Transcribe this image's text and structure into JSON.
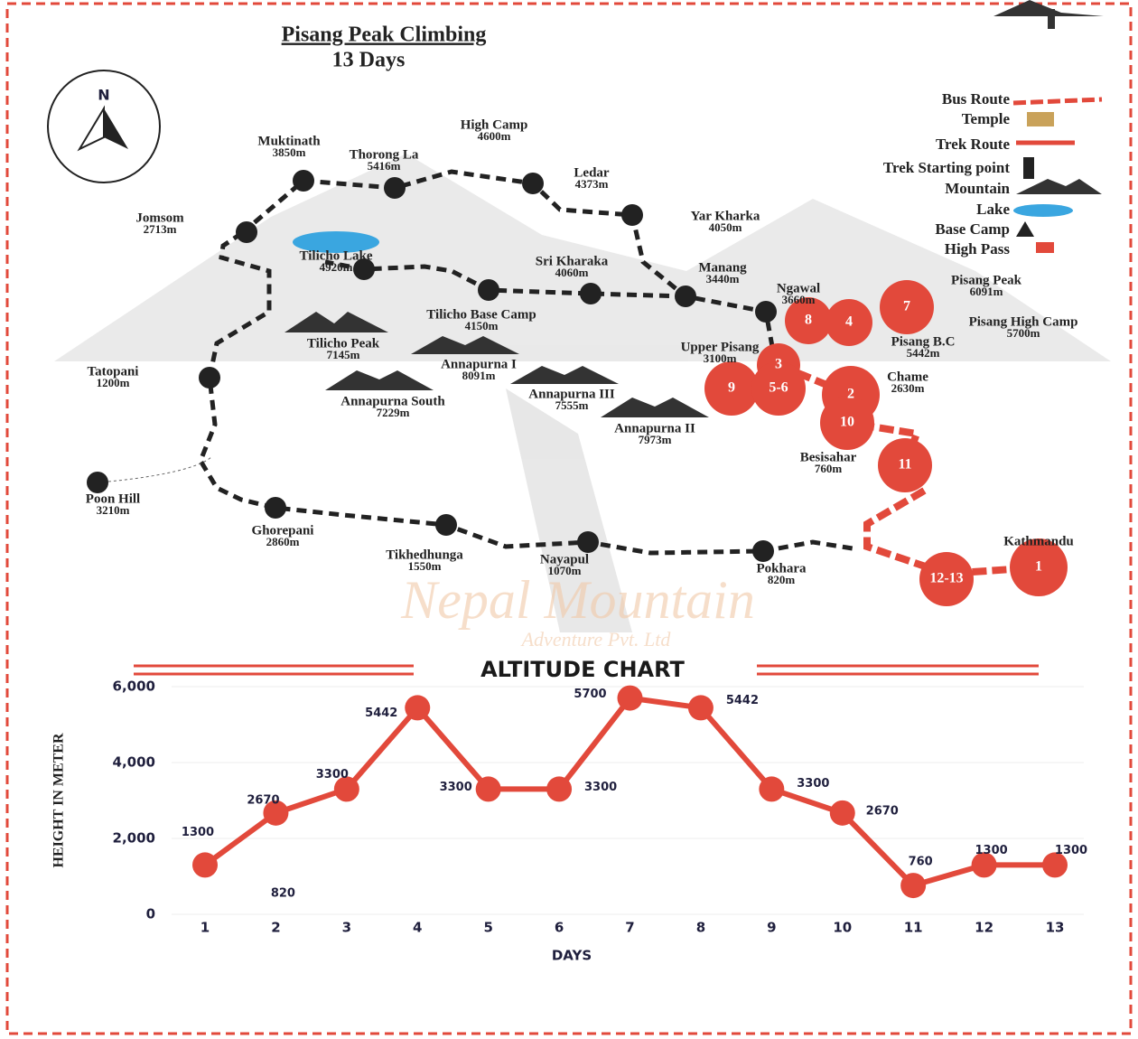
{
  "header": {
    "title": "Pisang Peak Climbing",
    "subtitle": "13  Days"
  },
  "compass": "N",
  "watermark": {
    "name": "Nepal Mountain",
    "company": "Adventure Pvt. Ltd"
  },
  "legend": [
    "Bus Route",
    "Temple",
    "Trek Route",
    "Trek Starting point",
    "Mountain",
    "Lake",
    "Base Camp",
    "High Pass"
  ],
  "places": [
    {
      "name": "Muktinath",
      "altitude": "3850m"
    },
    {
      "name": "Thorong La",
      "altitude": "5416m"
    },
    {
      "name": "High Camp",
      "altitude": "4600m"
    },
    {
      "name": "Ledar",
      "altitude": "4373m"
    },
    {
      "name": "Yar Kharka",
      "altitude": "4050m"
    },
    {
      "name": "Jomsom",
      "altitude": "2713m"
    },
    {
      "name": "Tilicho Lake",
      "altitude": "4920m"
    },
    {
      "name": "Sri Kharaka",
      "altitude": "4060m"
    },
    {
      "name": "Manang",
      "altitude": "3440m"
    },
    {
      "name": "Ngawal",
      "altitude": "3660m"
    },
    {
      "name": "Tilicho Base Camp",
      "altitude": "4150m"
    },
    {
      "name": "Tilicho Peak",
      "altitude": "7145m"
    },
    {
      "name": "Annapurna I",
      "altitude": "8091m"
    },
    {
      "name": "Annapurna South",
      "altitude": "7229m"
    },
    {
      "name": "Annapurna III",
      "altitude": "7555m"
    },
    {
      "name": "Annapurna II",
      "altitude": "7973m"
    },
    {
      "name": "Upper Pisang",
      "altitude": "3100m"
    },
    {
      "name": "Pisang Peak",
      "altitude": "6091m"
    },
    {
      "name": "Pisang High Camp",
      "altitude": "5700m"
    },
    {
      "name": "Pisang B.C",
      "altitude": "5442m"
    },
    {
      "name": "Chame",
      "altitude": "2630m"
    },
    {
      "name": "Tatopani",
      "altitude": "1200m"
    },
    {
      "name": "Poon Hill",
      "altitude": "3210m"
    },
    {
      "name": "Ghorepani",
      "altitude": "2860m"
    },
    {
      "name": "Tikhedhunga",
      "altitude": "1550m"
    },
    {
      "name": "Nayapul",
      "altitude": "1070m"
    },
    {
      "name": "Pokhara",
      "altitude": "820m"
    },
    {
      "name": "Besisahar",
      "altitude": "760m"
    },
    {
      "name": "Kathmandu"
    }
  ],
  "day_markers": [
    "8",
    "4",
    "7",
    "3",
    "9",
    "5-6",
    "2",
    "10",
    "11",
    "12-13",
    "1"
  ],
  "chart_data": {
    "type": "line",
    "title": "ALTITUDE CHART",
    "x_label": "DAYS",
    "y_label": "HEIGHT IN METER",
    "categories": [
      "1",
      "2",
      "3",
      "4",
      "5",
      "6",
      "7",
      "8",
      "9",
      "10",
      "11",
      "12",
      "13"
    ],
    "values": [
      1300,
      2670,
      3300,
      5442,
      3300,
      3300,
      5700,
      5442,
      3300,
      2670,
      760,
      1300,
      1300
    ],
    "color": "#e2493b",
    "ylim": [
      0,
      6000
    ],
    "yticks": [
      0,
      {
        "value": 2000,
        "label": "2,000"
      },
      {
        "value": 4000,
        "label": "4,000"
      },
      {
        "value": 6000,
        "label": "6,000"
      }
    ],
    "grid": true,
    "annotation": "820"
  }
}
